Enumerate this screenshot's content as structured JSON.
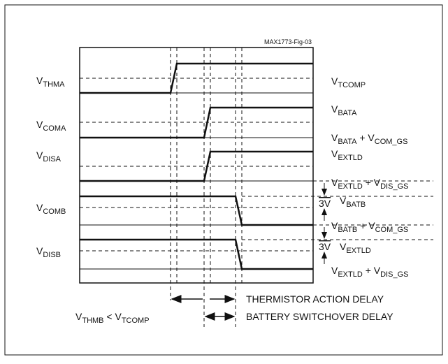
{
  "figure_id": "MAX1773-Fig-03",
  "left_labels": [
    [
      "V",
      "THMA"
    ],
    [
      "V",
      "COMA"
    ],
    [
      "V",
      "DISA"
    ],
    [
      "V",
      "COMB"
    ],
    [
      "V",
      "DISB"
    ]
  ],
  "right_labels": [
    [
      "V",
      "TCOMP"
    ],
    [
      "V",
      "BATA"
    ],
    [
      "V",
      "BATA",
      " + V",
      "COM_GS"
    ],
    [
      "V",
      "EXTLD"
    ],
    [
      "V",
      "EXTLD",
      " + V",
      "DIS_GS"
    ],
    [
      "V",
      "BATB"
    ],
    [
      "V",
      "BATB",
      " + V",
      "COM_GS"
    ],
    [
      "V",
      "EXTLD"
    ],
    [
      "V",
      "EXTLD",
      " + V",
      "DIS_GS"
    ]
  ],
  "step_labels": [
    "3V",
    "3V"
  ],
  "delays": [
    "THERMISTOR ACTION DELAY",
    "BATTERY SWITCHOVER DELAY"
  ],
  "condition": [
    "V",
    "THMB",
    " < V",
    "TCOMP"
  ]
}
